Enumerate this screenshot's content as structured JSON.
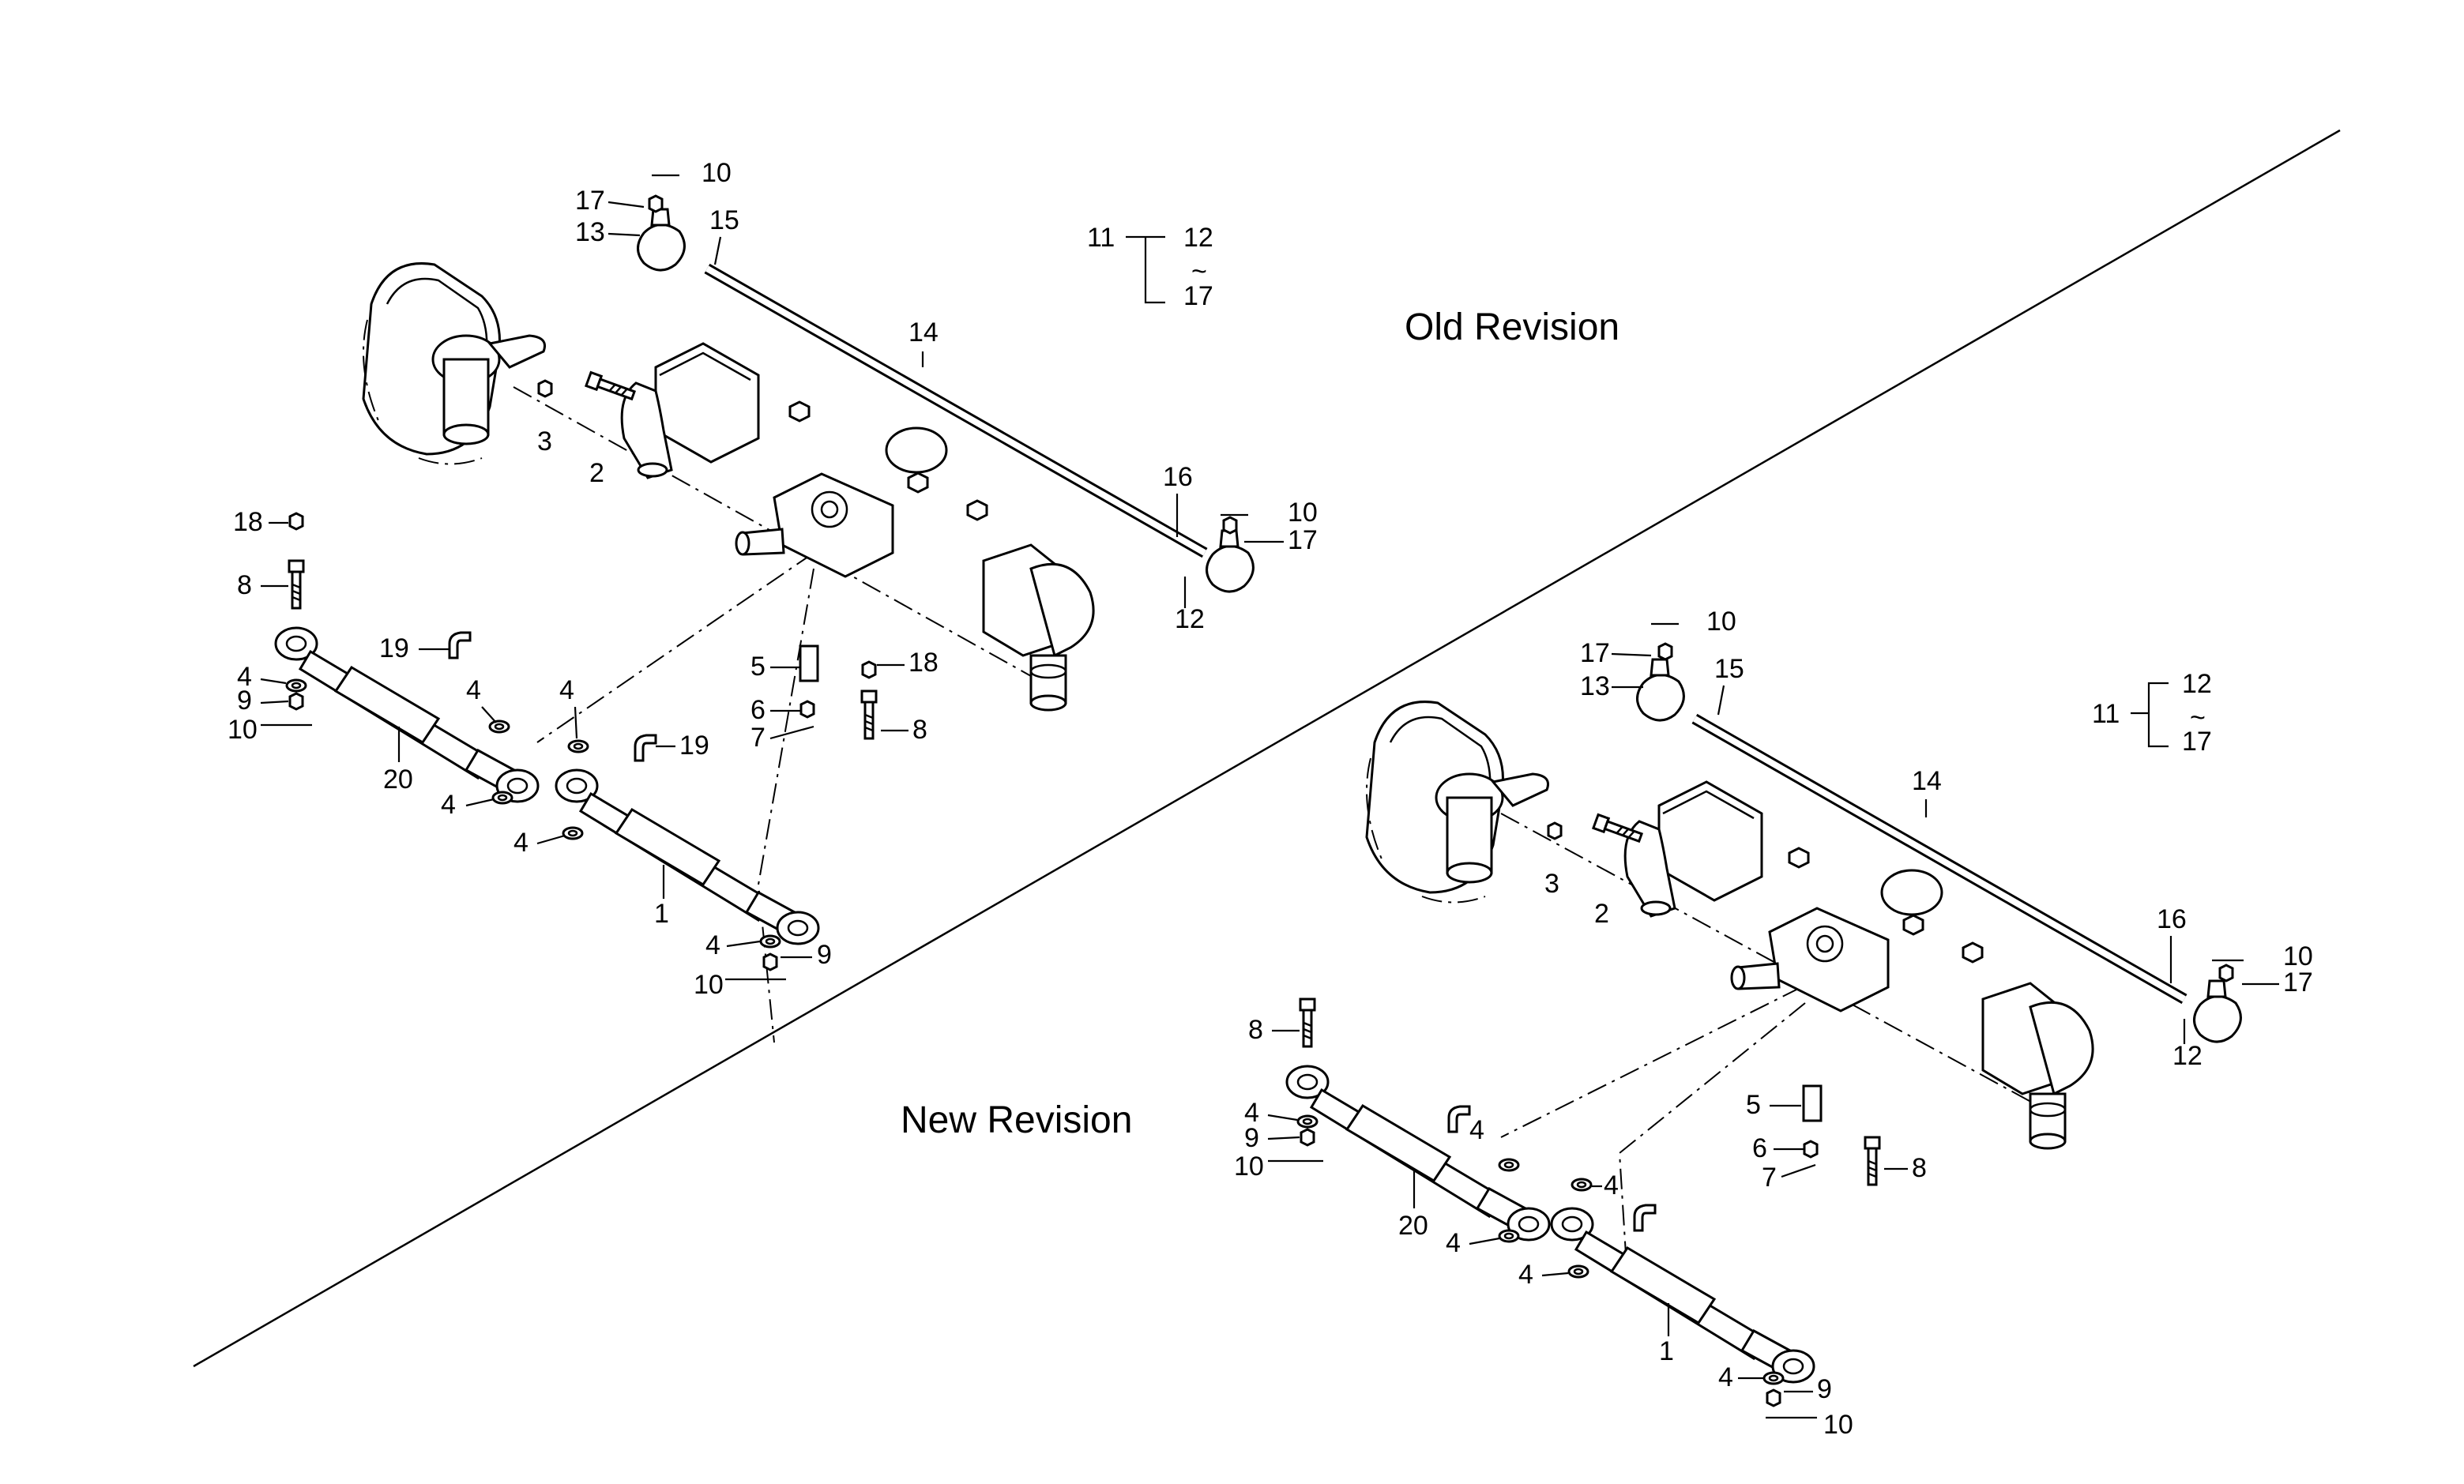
{
  "titles": {
    "old": "Old Revision",
    "new": "New Revision"
  },
  "callouts": {
    "c1": "1",
    "c2": "2",
    "c3": "3",
    "c4": "4",
    "c5": "5",
    "c6": "6",
    "c7": "7",
    "c8": "8",
    "c9": "9",
    "c10": "10",
    "c11": "11",
    "c12": "12",
    "c13": "13",
    "c14": "14",
    "c15": "15",
    "c16": "16",
    "c17": "17",
    "c18": "18",
    "c19": "19",
    "c20": "20",
    "tilde": "~"
  }
}
